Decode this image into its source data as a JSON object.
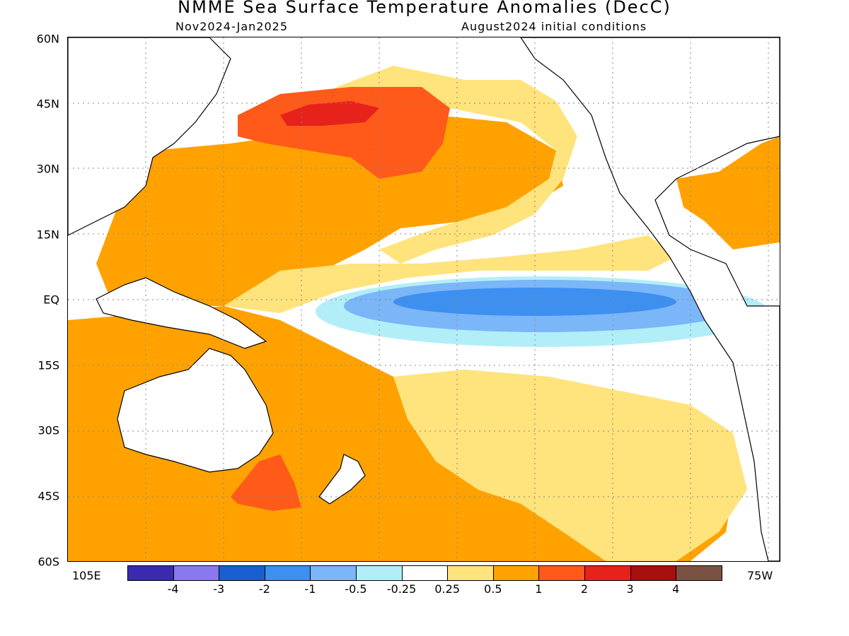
{
  "header": {
    "title": "NMME Sea Surface Temperature Anomalies (DecC)",
    "period": "Nov2024-Jan2025",
    "init": "August2024 initial conditions"
  },
  "axes": {
    "lat_labels": [
      "60N",
      "45N",
      "30N",
      "15N",
      "EQ",
      "15S",
      "30S",
      "45S",
      "60S"
    ],
    "lon_left": "105E",
    "lon_right": "75W"
  },
  "colorbar": {
    "colors": [
      "#3a2ab0",
      "#8a78ee",
      "#1a5fd0",
      "#3d8ff0",
      "#7ab6f8",
      "#b2eef8",
      "#ffffff",
      "#ffe37c",
      "#ffa200",
      "#ff5a1a",
      "#e6221b",
      "#a80f0f",
      "#7a5244"
    ],
    "labels": [
      "-4",
      "-3",
      "-2",
      "-1",
      "-0.5",
      "-0.25",
      "0.25",
      "0.5",
      "1",
      "2",
      "3",
      "4"
    ]
  }
}
